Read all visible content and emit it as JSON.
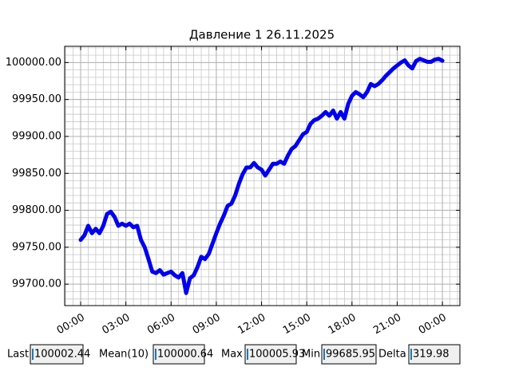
{
  "chart_data": {
    "type": "line",
    "title": "Давление 1 26.11.2025",
    "x": [
      0,
      0.25,
      0.5,
      0.75,
      1,
      1.25,
      1.5,
      1.75,
      2,
      2.25,
      2.5,
      2.75,
      3,
      3.25,
      3.5,
      3.75,
      4,
      4.25,
      4.5,
      4.75,
      5,
      5.25,
      5.5,
      5.75,
      6,
      6.25,
      6.5,
      6.75,
      7,
      7.25,
      7.5,
      7.75,
      8,
      8.25,
      8.5,
      8.75,
      9,
      9.25,
      9.5,
      9.75,
      10,
      10.25,
      10.5,
      10.75,
      11,
      11.25,
      11.5,
      11.75,
      12,
      12.25,
      12.5,
      12.75,
      13,
      13.25,
      13.5,
      13.75,
      14,
      14.25,
      14.5,
      14.75,
      15,
      15.25,
      15.5,
      15.75,
      16,
      16.25,
      16.5,
      16.75,
      17,
      17.25,
      17.5,
      17.75,
      18,
      18.25,
      18.5,
      18.75,
      19,
      19.25,
      19.5,
      19.75,
      20,
      20.25,
      20.5,
      20.75,
      21,
      21.25,
      21.5,
      21.75,
      22,
      22.25,
      22.5,
      22.75,
      23,
      23.25,
      23.5,
      23.75,
      24
    ],
    "series": [
      {
        "color": "#0000ee",
        "values": [
          99760,
          99766,
          99779,
          99769,
          99775,
          99769,
          99779,
          99795,
          99798,
          99791,
          99779,
          99782,
          99779,
          99782,
          99777,
          99779,
          99760,
          99750,
          99734,
          99717,
          99715,
          99719,
          99713,
          99715,
          99717,
          99712,
          99709,
          99715,
          99688,
          99708,
          99712,
          99723,
          99737,
          99734,
          99741,
          99755,
          99769,
          99782,
          99793,
          99806,
          99809,
          99820,
          99836,
          99849,
          99858,
          99858,
          99864,
          99858,
          99855,
          99847,
          99855,
          99863,
          99863,
          99866,
          99863,
          99874,
          99883,
          99887,
          99895,
          99903,
          99906,
          99917,
          99922,
          99924,
          99928,
          99933,
          99928,
          99935,
          99924,
          99933,
          99924,
          99944,
          99955,
          99960,
          99957,
          99953,
          99960,
          99971,
          99968,
          99971,
          99976,
          99982,
          99987,
          99992,
          99996,
          100000,
          100003,
          99996,
          99992,
          100002,
          100005,
          100003,
          100001,
          100001,
          100004,
          100005,
          100002.44
        ]
      }
    ],
    "xlim": [
      -1.06,
      25.16
    ],
    "xticks": [
      {
        "value": 0,
        "label": "00:00"
      },
      {
        "value": 3,
        "label": "03:00"
      },
      {
        "value": 6,
        "label": "06:00"
      },
      {
        "value": 9,
        "label": "09:00"
      },
      {
        "value": 12,
        "label": "12:00"
      },
      {
        "value": 15,
        "label": "15:00"
      },
      {
        "value": 18,
        "label": "18:00"
      },
      {
        "value": 21,
        "label": "21:00"
      },
      {
        "value": 24,
        "label": "00:00"
      }
    ],
    "ylim": [
      99671,
      100022
    ],
    "yticks": [
      {
        "value": 99700,
        "label": "99700.00"
      },
      {
        "value": 99750,
        "label": "99750.00"
      },
      {
        "value": 99800,
        "label": "99800.00"
      },
      {
        "value": 99850,
        "label": "99850.00"
      },
      {
        "value": 99900,
        "label": "99900.00"
      },
      {
        "value": 99950,
        "label": "99950.00"
      },
      {
        "value": 100000,
        "label": "100000.00"
      }
    ],
    "grid": true,
    "minor_grid": true
  },
  "stats": [
    {
      "label": "Last",
      "value": "100002.44"
    },
    {
      "label": "Mean(10)",
      "value": "100000.64"
    },
    {
      "label": "Max",
      "value": "100005.93"
    },
    {
      "label": "Min",
      "value": "99685.95"
    },
    {
      "label": "Delta",
      "value": "319.98"
    }
  ]
}
